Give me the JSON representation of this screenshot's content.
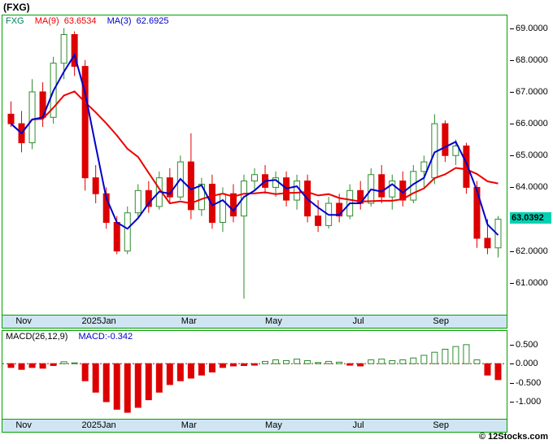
{
  "header": {
    "title": "(FXG)"
  },
  "main_chart": {
    "symbol_label": "FXG",
    "ma9_label": "MA(9)",
    "ma9_value": "63.6534",
    "ma3_label": "MA(3)",
    "ma3_value": "62.6925",
    "last_price_tag": "63.0392"
  },
  "macd_panel": {
    "indicator_label": "MACD(26,12,9)",
    "macd_value_label": "MACD:-0.342"
  },
  "footer": {
    "copyright": "© 12Stocks.com"
  },
  "colors": {
    "border_green": "#00a000",
    "axis_strip_bg": "#cfe6f2",
    "up_candle": "#2e8b2e",
    "down_candle": "#dd0000",
    "ma9_line": "#ee0000",
    "ma3_line": "#0000cc",
    "price_tag_bg": "#00d1b2",
    "macd_zero_line": "#cc0000",
    "macd_value_text": "#0000cc",
    "symbol_text": "#008060"
  },
  "chart_data": [
    {
      "type": "candlestick",
      "title": "FXG price with MA(9) and MA(3) overlays",
      "ylim": [
        60.0,
        69.4
      ],
      "grid": false,
      "legend_position": "top-left",
      "yticks": [
        {
          "v": 69,
          "label": "69.0000"
        },
        {
          "v": 68,
          "label": "68.0000"
        },
        {
          "v": 67,
          "label": "67.0000"
        },
        {
          "v": 66,
          "label": "66.0000"
        },
        {
          "v": 65,
          "label": "65.0000"
        },
        {
          "v": 64,
          "label": "64.0000"
        },
        {
          "v": 62,
          "label": "62.0000"
        },
        {
          "v": 61,
          "label": "61.0000"
        }
      ],
      "last_price": 63.0392,
      "x_ticks": [
        {
          "label": "Nov",
          "i": 1.2
        },
        {
          "label": "2025Jan",
          "i": 8.3
        },
        {
          "label": "Mar",
          "i": 16.8
        },
        {
          "label": "May",
          "i": 24.8
        },
        {
          "label": "Jul",
          "i": 32.8
        },
        {
          "label": "Sep",
          "i": 40.6
        }
      ],
      "candle_format": [
        "open",
        "high",
        "low",
        "close"
      ],
      "candles": [
        [
          66.3,
          66.7,
          65.9,
          66.0
        ],
        [
          66.0,
          66.4,
          65.1,
          65.4
        ],
        [
          65.4,
          67.4,
          65.2,
          67.0
        ],
        [
          67.0,
          67.3,
          65.9,
          66.2
        ],
        [
          66.2,
          68.1,
          66.0,
          67.9
        ],
        [
          67.9,
          69.0,
          67.4,
          68.8
        ],
        [
          68.8,
          68.9,
          67.5,
          67.8
        ],
        [
          67.8,
          68.0,
          63.9,
          64.3
        ],
        [
          64.3,
          64.7,
          63.5,
          63.8
        ],
        [
          63.8,
          64.0,
          62.7,
          62.9
        ],
        [
          62.9,
          63.1,
          61.9,
          62.0
        ],
        [
          62.0,
          63.4,
          61.9,
          63.2
        ],
        [
          63.2,
          64.1,
          63.0,
          63.9
        ],
        [
          63.9,
          64.2,
          63.2,
          63.4
        ],
        [
          63.4,
          64.5,
          63.3,
          64.3
        ],
        [
          64.3,
          64.6,
          63.5,
          63.7
        ],
        [
          63.7,
          65.0,
          63.6,
          64.8
        ],
        [
          64.8,
          65.7,
          63.0,
          63.3
        ],
        [
          63.3,
          64.3,
          63.1,
          64.1
        ],
        [
          64.1,
          64.4,
          62.7,
          62.9
        ],
        [
          62.9,
          64.0,
          62.6,
          63.8
        ],
        [
          63.8,
          64.1,
          62.9,
          63.1
        ],
        [
          63.1,
          64.4,
          60.5,
          64.2
        ],
        [
          64.2,
          64.6,
          63.9,
          64.4
        ],
        [
          64.4,
          64.7,
          63.8,
          64.0
        ],
        [
          64.0,
          64.5,
          63.7,
          64.3
        ],
        [
          64.3,
          64.5,
          63.4,
          63.6
        ],
        [
          63.6,
          64.4,
          63.3,
          64.2
        ],
        [
          64.2,
          64.4,
          62.9,
          63.1
        ],
        [
          63.1,
          63.6,
          62.6,
          62.8
        ],
        [
          62.8,
          63.7,
          62.7,
          63.5
        ],
        [
          63.5,
          63.8,
          62.9,
          63.1
        ],
        [
          63.1,
          64.1,
          63.0,
          63.9
        ],
        [
          63.9,
          64.2,
          63.3,
          63.5
        ],
        [
          63.5,
          64.6,
          63.4,
          64.4
        ],
        [
          64.4,
          64.7,
          63.5,
          63.7
        ],
        [
          63.7,
          64.4,
          63.3,
          64.2
        ],
        [
          64.2,
          64.5,
          63.4,
          63.6
        ],
        [
          63.6,
          64.7,
          63.5,
          64.5
        ],
        [
          64.5,
          65.0,
          64.0,
          64.8
        ],
        [
          64.3,
          66.3,
          64.1,
          66.0
        ],
        [
          66.0,
          66.1,
          64.8,
          65.0
        ],
        [
          65.0,
          65.5,
          64.7,
          65.3
        ],
        [
          65.3,
          65.4,
          63.8,
          64.0
        ],
        [
          64.0,
          64.2,
          62.1,
          62.4
        ],
        [
          62.4,
          63.0,
          61.9,
          62.1
        ],
        [
          62.1,
          63.1,
          61.8,
          63.0
        ]
      ],
      "overlays": [
        {
          "name": "MA(9)",
          "period": 9,
          "color": "#ee0000",
          "last_value": 63.6534
        },
        {
          "name": "MA(3)",
          "period": 3,
          "color": "#0000cc",
          "last_value": 62.6925
        }
      ]
    },
    {
      "type": "bar",
      "title": "MACD(26,12,9) histogram",
      "ylim": [
        -1.45,
        0.86
      ],
      "grid": false,
      "macd_last": -0.342,
      "zero_line": {
        "style": "dotted",
        "color": "#cc0000"
      },
      "yticks": [
        {
          "v": 0.5,
          "label": "0.500"
        },
        {
          "v": 0.0,
          "label": "0.000"
        },
        {
          "v": -0.5,
          "label": "-0.500"
        },
        {
          "v": -1.0,
          "label": "-1.000"
        }
      ],
      "values": [
        -0.1,
        -0.15,
        -0.1,
        -0.12,
        -0.05,
        0.05,
        0.02,
        -0.45,
        -0.75,
        -1.0,
        -1.2,
        -1.28,
        -1.15,
        -0.95,
        -0.75,
        -0.55,
        -0.45,
        -0.38,
        -0.3,
        -0.22,
        -0.1,
        -0.06,
        -0.05,
        -0.04,
        0.06,
        0.1,
        0.08,
        0.12,
        0.08,
        0.03,
        0.06,
        0.04,
        -0.04,
        -0.06,
        0.1,
        0.12,
        0.08,
        0.1,
        0.15,
        0.22,
        0.3,
        0.38,
        0.45,
        0.5,
        0.1,
        -0.3,
        -0.42
      ]
    }
  ]
}
